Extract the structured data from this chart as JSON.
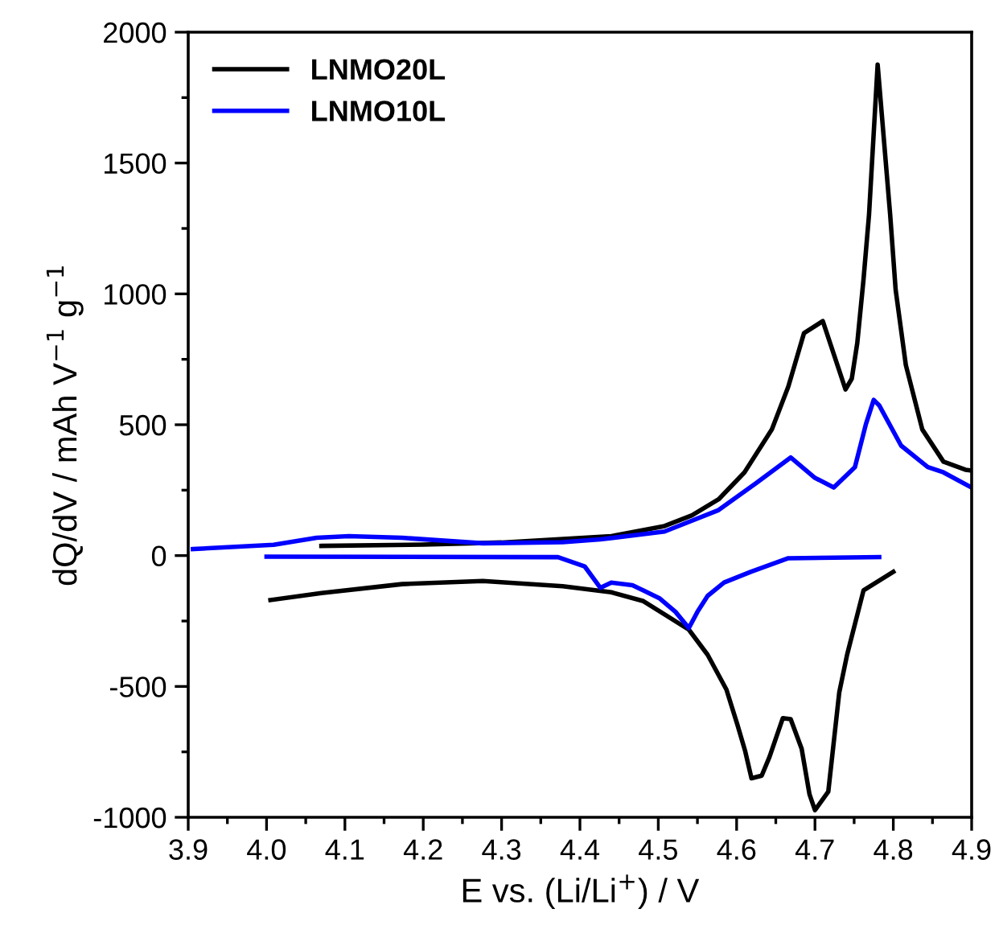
{
  "chart_data": {
    "type": "line",
    "xlabel": "E vs. (Li/Li$^{+}$) / V",
    "ylabel": "dQ/dV / mAh V$^{−1}$ g$^{−1}$",
    "xlim": [
      3.9,
      4.9
    ],
    "xticks": [
      3.9,
      {
        "value": 4.0,
        "label": "4.0"
      },
      4.1,
      4.2,
      4.3,
      4.4,
      4.5,
      4.6,
      4.7,
      4.8,
      4.9
    ],
    "ylim": [
      -1000,
      2000
    ],
    "yticks": [
      -1000,
      -500,
      0,
      500,
      1000,
      1500,
      2000
    ],
    "grid": false,
    "legend": "top left",
    "marker": "none",
    "line_style": "solid",
    "series": [
      {
        "name": "LNMO20L",
        "color": "#000000",
        "x": [
          4.07,
          4.2,
          4.3,
          4.44,
          4.508,
          4.543,
          4.577,
          4.61,
          4.645,
          4.666,
          4.686,
          4.71,
          4.739,
          4.747,
          4.754,
          4.762,
          4.769,
          4.78,
          4.796,
          4.803,
          4.816,
          4.837,
          4.864,
          4.892,
          4.9
        ],
        "values": [
          37,
          42,
          50,
          74,
          113,
          154,
          215,
          318,
          482,
          646,
          850,
          896,
          635,
          676,
          812,
          1056,
          1302,
          1876,
          1302,
          1015,
          728,
          482,
          359,
          328,
          325
        ]
      },
      {
        "color": "#000000",
        "x": [
          4.005,
          4.07,
          4.173,
          4.276,
          4.378,
          4.44,
          4.481,
          4.539,
          4.563,
          4.587,
          4.601,
          4.611,
          4.619,
          4.632,
          4.642,
          4.659,
          4.669,
          4.683,
          4.693,
          4.7,
          4.717,
          4.731,
          4.741,
          4.762,
          4.8
        ],
        "values": [
          -170,
          -143,
          -109,
          -97,
          -117,
          -140,
          -174,
          -283,
          -379,
          -512,
          -646,
          -748,
          -851,
          -841,
          -769,
          -621,
          -625,
          -738,
          -912,
          -973,
          -902,
          -523,
          -379,
          -133,
          -62
        ]
      },
      {
        "name": "LNMO10L",
        "color": "#0000ff",
        "x": [
          3.906,
          4.009,
          4.064,
          4.105,
          4.173,
          4.276,
          4.378,
          4.426,
          4.481,
          4.508,
          4.577,
          4.625,
          4.669,
          4.7,
          4.724,
          4.751,
          4.765,
          4.775,
          4.782,
          4.81,
          4.844,
          4.864,
          4.9
        ],
        "values": [
          25,
          41,
          68,
          74,
          68,
          47,
          51,
          62,
          82,
          92,
          174,
          277,
          375,
          297,
          260,
          338,
          502,
          595,
          574,
          420,
          338,
          318,
          260
        ]
      },
      {
        "color": "#0000ff",
        "x": [
          4.0,
          4.372,
          4.406,
          4.426,
          4.44,
          4.467,
          4.481,
          4.502,
          4.522,
          4.539,
          4.55,
          4.563,
          4.584,
          4.618,
          4.666,
          4.782
        ],
        "values": [
          -4,
          -6,
          -41,
          -123,
          -103,
          -113,
          -133,
          -164,
          -215,
          -277,
          -215,
          -154,
          -103,
          -62,
          -10,
          -6
        ]
      }
    ]
  }
}
